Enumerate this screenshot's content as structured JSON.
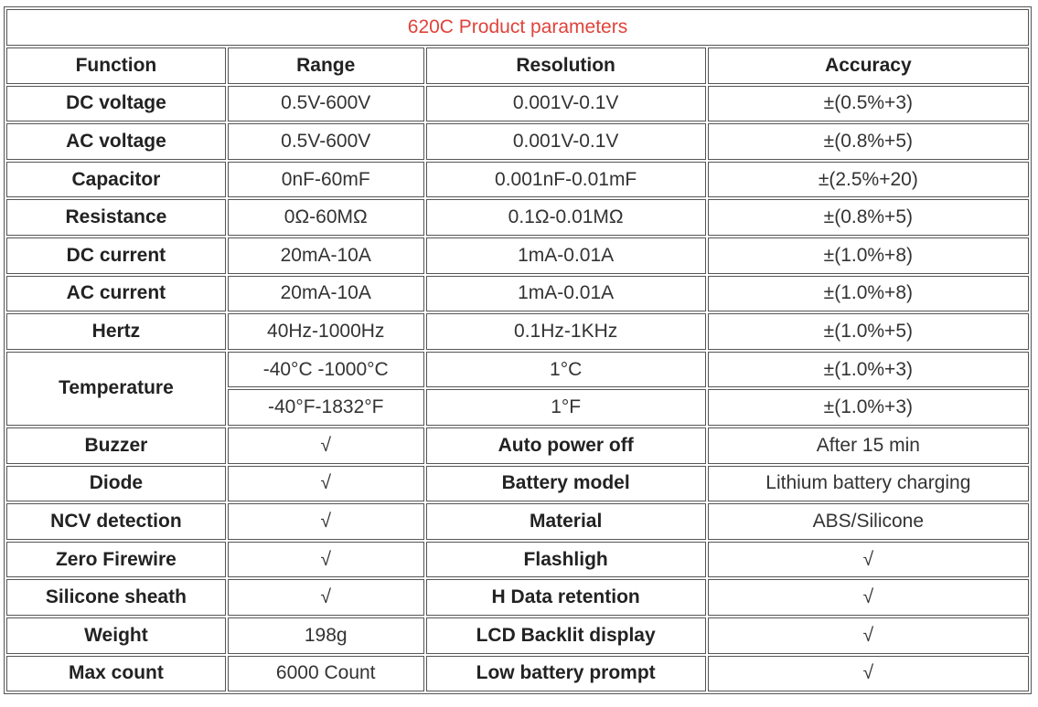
{
  "title": "620C Product parameters",
  "headers": [
    "Function",
    "Range",
    "Resolution",
    "Accuracy"
  ],
  "rows": [
    {
      "function": "DC voltage",
      "range": "0.5V-600V",
      "resolution": "0.001V-0.1V",
      "accuracy": "±(0.5%+3)"
    },
    {
      "function": "AC voltage",
      "range": "0.5V-600V",
      "resolution": "0.001V-0.1V",
      "accuracy": "±(0.8%+5)"
    },
    {
      "function": "Capacitor",
      "range": "0nF-60mF",
      "resolution": "0.001nF-0.01mF",
      "accuracy": "±(2.5%+20)"
    },
    {
      "function": "Resistance",
      "range": "0Ω-60MΩ",
      "resolution": "0.1Ω-0.01MΩ",
      "accuracy": "±(0.8%+5)"
    },
    {
      "function": "DC current",
      "range": "20mA-10A",
      "resolution": "1mA-0.01A",
      "accuracy": "±(1.0%+8)"
    },
    {
      "function": "AC current",
      "range": "20mA-10A",
      "resolution": "1mA-0.01A",
      "accuracy": "±(1.0%+8)"
    },
    {
      "function": "Hertz",
      "range": "40Hz-1000Hz",
      "resolution": "0.1Hz-1KHz",
      "accuracy": "±(1.0%+5)"
    }
  ],
  "temperature": {
    "function": "Temperature",
    "rows": [
      {
        "range": "-40°C -1000°C",
        "resolution": "1°C",
        "accuracy": "±(1.0%+3)"
      },
      {
        "range": "-40°F-1832°F",
        "resolution": "1°F",
        "accuracy": "±(1.0%+3)"
      }
    ]
  },
  "features": [
    {
      "name1": "Buzzer",
      "value1": "√",
      "name2": "Auto power off",
      "value2": "After 15 min"
    },
    {
      "name1": "Diode",
      "value1": "√",
      "name2": "Battery model",
      "value2": "Lithium battery charging"
    },
    {
      "name1": "NCV detection",
      "value1": "√",
      "name2": "Material",
      "value2": "ABS/Silicone"
    },
    {
      "name1": "Zero Firewire",
      "value1": "√",
      "name2": "Flashligh",
      "value2": "√"
    },
    {
      "name1": "Silicone sheath",
      "value1": "√",
      "name2": "H Data retention",
      "value2": "√"
    },
    {
      "name1": "Weight",
      "value1": "198g",
      "name2": "LCD Backlit display",
      "value2": "√"
    },
    {
      "name1": "Max count",
      "value1": "6000 Count",
      "name2": "Low battery prompt",
      "value2": "√"
    }
  ],
  "colors": {
    "title": "#e0433a",
    "check": "#e0433a",
    "border": "#555555"
  }
}
